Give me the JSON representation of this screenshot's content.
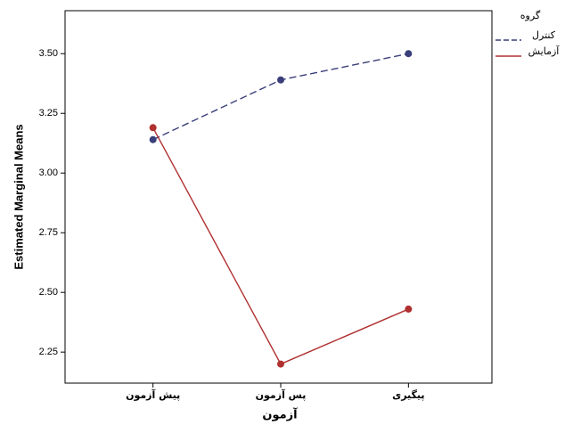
{
  "chart_data": {
    "type": "line",
    "ylabel": "Estimated Marginal Means",
    "xlabel": "آزمون",
    "legend_title": "گروه",
    "legend_position": "top-right",
    "categories": [
      "پیش آزمون",
      "پس آزمون",
      "پیگیری"
    ],
    "series": [
      {
        "name": "کنترل",
        "color": "#3a3f7a",
        "dashed": true,
        "values": [
          3.14,
          3.39,
          3.5
        ]
      },
      {
        "name": "آزمایش",
        "color": "#b03030",
        "dashed": false,
        "values": [
          3.19,
          2.2,
          2.43
        ]
      }
    ],
    "ylim": [
      2.12,
      3.68
    ],
    "yticks": [
      2.25,
      {
        "value": 2.5,
        "label": "2.50"
      },
      2.75,
      {
        "value": 3.0,
        "label": "3.00"
      },
      3.25,
      {
        "value": 3.5,
        "label": "3.50"
      }
    ]
  }
}
